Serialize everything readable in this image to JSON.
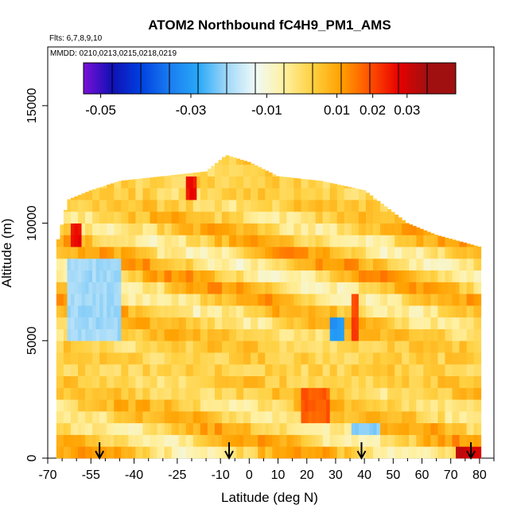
{
  "chart_data": {
    "type": "heatmap",
    "title": "ATOM2 Northbound fC4H9_PM1_AMS",
    "flights_note": "Flts: 6,7,8,9,10",
    "dates_note": "MMDD: 0210,0213,0215,0218,0219",
    "xlabel": "Latitude (deg N)",
    "ylabel": "Altitude (m)",
    "xlim": [
      -70,
      85
    ],
    "ylim": [
      0,
      17500
    ],
    "x_ticks": [
      -70,
      -55,
      -40,
      -25,
      -10,
      0,
      10,
      20,
      30,
      40,
      50,
      60,
      70,
      80
    ],
    "x_tick_labels": [
      "-70",
      "-55",
      "-40",
      "-25",
      "-10",
      "0",
      "10",
      "20",
      "30",
      "40",
      "50",
      "60",
      "70",
      "80"
    ],
    "y_ticks": [
      0,
      5000,
      10000,
      15000
    ],
    "y_tick_labels": [
      "0",
      "5000",
      "10000",
      "15000"
    ],
    "colorbar": {
      "tick_labels": [
        "-0.05",
        "-0.03",
        "-0.01",
        "0.01",
        "0.02",
        "0.03"
      ],
      "tick_values": [
        -0.05,
        -0.03,
        -0.01,
        0.01,
        0.02,
        0.03
      ],
      "segment_colors": [
        "#7a10d8",
        "#1010b4",
        "#0040e0",
        "#1a7cf0",
        "#28a8f8",
        "#a0d8f8",
        "#f0faf8",
        "#fff0a0",
        "#ffd040",
        "#ffa000",
        "#ff5000",
        "#e80000",
        "#a01010"
      ]
    },
    "flight_marker_latitudes": [
      -52,
      -7,
      39,
      77
    ],
    "vertical_extent": [
      {
        "lat": -67,
        "max_alt": 9000
      },
      {
        "lat": -63,
        "max_alt": 11000
      },
      {
        "lat": -55,
        "max_alt": 11400
      },
      {
        "lat": -45,
        "max_alt": 11800
      },
      {
        "lat": -30,
        "max_alt": 12000
      },
      {
        "lat": -15,
        "max_alt": 12200
      },
      {
        "lat": -8,
        "max_alt": 12900
      },
      {
        "lat": 0,
        "max_alt": 12600
      },
      {
        "lat": 10,
        "max_alt": 12000
      },
      {
        "lat": 25,
        "max_alt": 11800
      },
      {
        "lat": 40,
        "max_alt": 11400
      },
      {
        "lat": 55,
        "max_alt": 10000
      },
      {
        "lat": 65,
        "max_alt": 9500
      },
      {
        "lat": 80,
        "max_alt": 9000
      }
    ],
    "features": [
      {
        "lat_min": -63,
        "lat_max": -45,
        "alt_min": 5000,
        "alt_max": 8300,
        "value": -0.018
      },
      {
        "lat_min": -62,
        "lat_max": -58,
        "alt_min": 9200,
        "alt_max": 10000,
        "value": 0.03
      },
      {
        "lat_min": 18,
        "lat_max": 28,
        "alt_min": 1600,
        "alt_max": 2800,
        "value": 0.022
      },
      {
        "lat_min": 35,
        "lat_max": 38,
        "alt_min": 4800,
        "alt_max": 6800,
        "value": 0.025
      },
      {
        "lat_min": 72,
        "lat_max": 80,
        "alt_min": 0,
        "alt_max": 500,
        "value": 0.035
      },
      {
        "lat_min": 28,
        "lat_max": 33,
        "alt_min": 5000,
        "alt_max": 6200,
        "value": -0.03
      },
      {
        "lat_min": 35,
        "lat_max": 45,
        "alt_min": 800,
        "alt_max": 1600,
        "value": -0.02
      },
      {
        "lat_min": -22,
        "lat_max": -18,
        "alt_min": 11000,
        "alt_max": 12000,
        "value": 0.03
      }
    ]
  }
}
